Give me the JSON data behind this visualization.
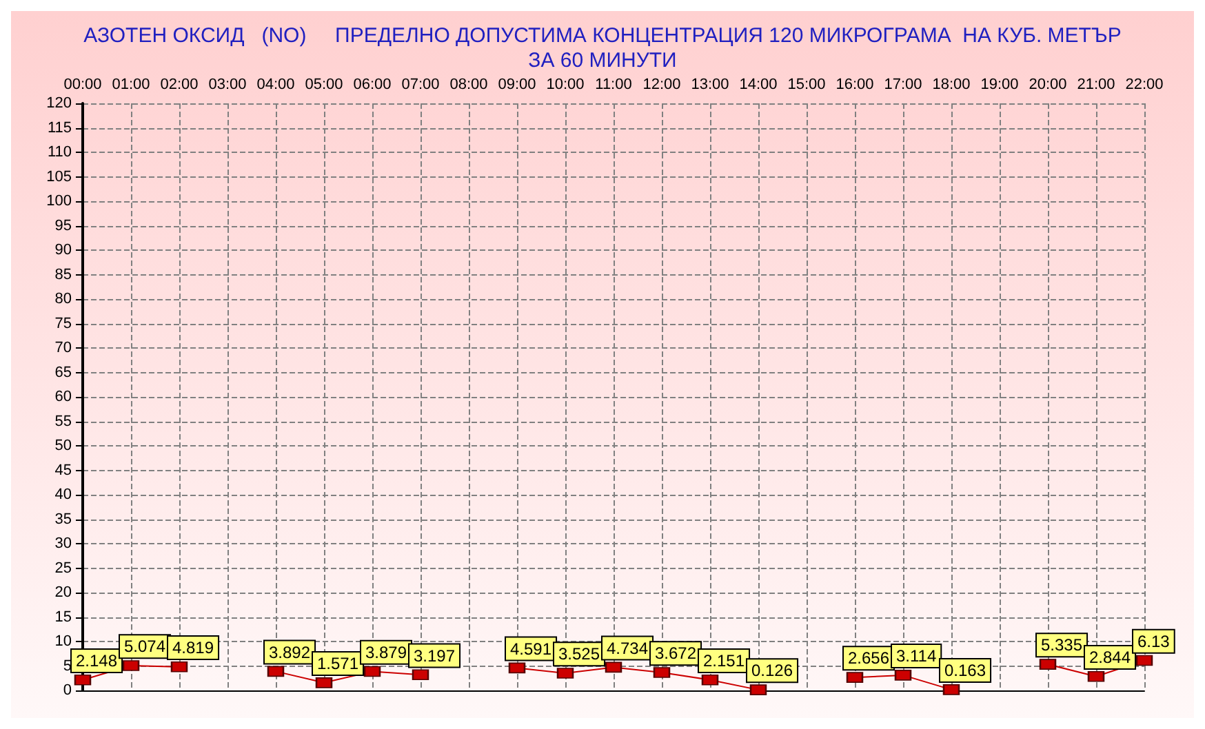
{
  "chart_data": {
    "type": "line",
    "title": "АЗОТЕН ОКСИД   (NO)     ПРЕДЕЛНО ДОПУСТИМА КОНЦЕНТРАЦИЯ 120 МИКРОГРАМА  НА КУБ. МЕТЪР\nЗА 60 МИНУТИ",
    "categories": [
      "00:00",
      "01:00",
      "02:00",
      "03:00",
      "04:00",
      "05:00",
      "06:00",
      "07:00",
      "08:00",
      "09:00",
      "10:00",
      "11:00",
      "12:00",
      "13:00",
      "14:00",
      "15:00",
      "16:00",
      "17:00",
      "18:00",
      "19:00",
      "20:00",
      "21:00",
      "22:00"
    ],
    "series": [
      {
        "color": "#cc0000",
        "values": [
          2.148,
          5.074,
          4.819,
          null,
          3.892,
          1.571,
          3.879,
          3.197,
          null,
          4.591,
          3.525,
          4.734,
          3.672,
          2.151,
          0.126,
          null,
          2.656,
          3.114,
          0.163,
          null,
          5.335,
          2.844,
          6.13
        ]
      }
    ],
    "ylim": [
      0,
      120
    ],
    "yticks": [
      0,
      5,
      10,
      15,
      20,
      25,
      30,
      35,
      40,
      45,
      50,
      55,
      60,
      65,
      70,
      75,
      80,
      85,
      90,
      95,
      100,
      105,
      110,
      115,
      120
    ],
    "grid": true,
    "marker": "square",
    "line_style": "solid",
    "data_labels": true
  }
}
